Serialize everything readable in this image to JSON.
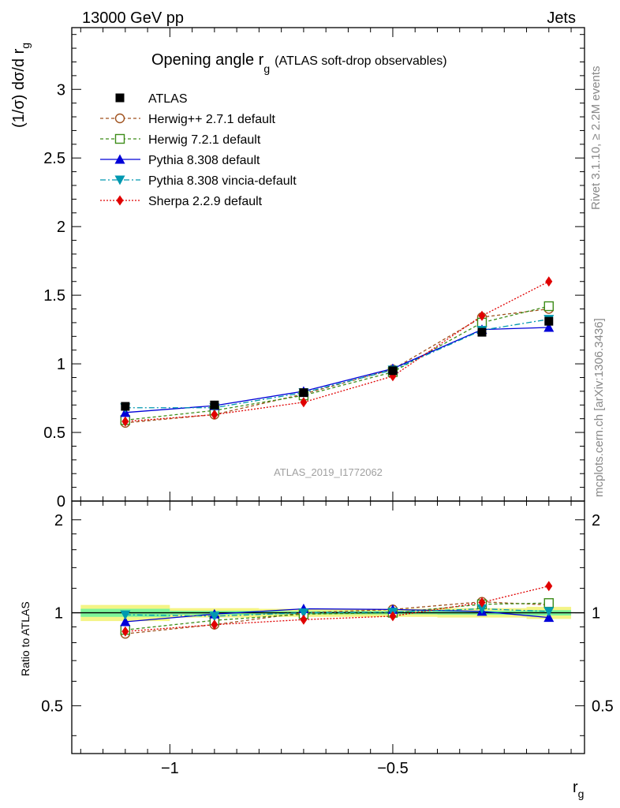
{
  "header": {
    "left": "13000 GeV pp",
    "right": "Jets"
  },
  "side_labels": {
    "rivet": "Rivet 3.1.10, ≥ 2.2M events",
    "mcplots": "mcplots.cern.ch [arXiv:1306.3436]"
  },
  "watermark": "ATLAS_2019_I1772062",
  "chart_data": {
    "type": "line",
    "title_main": "Opening angle r",
    "title_sub": "g",
    "title_tail": "(ATLAS soft-drop observables)",
    "ylabel_main": "(1/σ) dσ/d r",
    "ylabel_sub": "g",
    "xlabel_main": "r",
    "xlabel_sub": "g",
    "ratio_ylabel": "Ratio to ATLAS",
    "xlim": [
      -1.22,
      -0.07
    ],
    "ylim": [
      0,
      3.45
    ],
    "ratio_ylim": [
      0.35,
      2.3
    ],
    "x_ticks": [
      {
        "v": -1,
        "label": "−1"
      },
      {
        "v": -0.5,
        "label": "−0.5"
      }
    ],
    "y_ticks": [
      {
        "v": 0,
        "label": "0"
      },
      {
        "v": 0.5,
        "label": "0.5"
      },
      {
        "v": 1,
        "label": "1"
      },
      {
        "v": 1.5,
        "label": "1.5"
      },
      {
        "v": 2,
        "label": "2"
      },
      {
        "v": 2.5,
        "label": "2.5"
      },
      {
        "v": 3,
        "label": "3"
      }
    ],
    "ratio_ticks": [
      {
        "v": 0.5,
        "label": "0.5"
      },
      {
        "v": 1,
        "label": "1"
      },
      {
        "v": 2,
        "label": "2"
      }
    ],
    "x": [
      -1.1,
      -0.9,
      -0.7,
      -0.5,
      -0.3,
      -0.15
    ],
    "band": {
      "x_edges": [
        -1.2,
        -1.0,
        -0.8,
        -0.6,
        -0.4,
        -0.2,
        -0.1
      ],
      "inner": [
        0.03,
        0.015,
        0.012,
        0.012,
        0.015,
        0.02
      ],
      "outer": [
        0.06,
        0.035,
        0.03,
        0.03,
        0.035,
        0.045
      ],
      "inner_color": "#7cf49a",
      "outer_color": "#f4f486"
    },
    "series": [
      {
        "name": "ATLAS",
        "values": [
          0.69,
          0.7,
          0.79,
          0.95,
          1.23,
          1.31
        ],
        "color": "#000000",
        "marker": "square-filled",
        "dash": "none"
      },
      {
        "name": "Herwig++ 2.7.1 default",
        "values": [
          0.57,
          0.63,
          0.78,
          0.96,
          1.34,
          1.4
        ],
        "color": "#a0521e",
        "marker": "circle-open",
        "dash": "4,3"
      },
      {
        "name": "Herwig 7.2.1 default",
        "values": [
          0.59,
          0.66,
          0.77,
          0.94,
          1.3,
          1.42
        ],
        "color": "#3c8c18",
        "marker": "square-open",
        "dash": "4,3"
      },
      {
        "name": "Pythia 8.308 default",
        "values": [
          0.645,
          0.695,
          0.8,
          0.965,
          1.25,
          1.265
        ],
        "color": "#0000d8",
        "marker": "triangle-up",
        "dash": "none"
      },
      {
        "name": "Pythia 8.308 vincia-default",
        "values": [
          0.68,
          0.68,
          0.79,
          0.955,
          1.245,
          1.325
        ],
        "color": "#0098b0",
        "marker": "triangle-down",
        "dash": "7,3,2,3"
      },
      {
        "name": "Sherpa 2.2.9 default",
        "values": [
          0.58,
          0.63,
          0.72,
          0.91,
          1.35,
          1.6
        ],
        "color": "#e00000",
        "marker": "diamond",
        "dash": "2,2"
      }
    ],
    "ratio_series": [
      {
        "name": "Herwig++ 2.7.1 default",
        "values": [
          0.855,
          0.915,
          1.0,
          1.025,
          1.085,
          1.06
        ]
      },
      {
        "name": "Herwig 7.2.1 default",
        "values": [
          0.88,
          0.945,
          0.99,
          1.0,
          1.065,
          1.075
        ]
      },
      {
        "name": "Pythia 8.308 default",
        "values": [
          0.935,
          0.99,
          1.03,
          1.025,
          1.01,
          0.965
        ]
      },
      {
        "name": "Pythia 8.308 vincia-default",
        "values": [
          0.985,
          0.975,
          1.0,
          1.005,
          1.03,
          1.01
        ]
      },
      {
        "name": "Sherpa 2.2.9 default",
        "values": [
          0.87,
          0.915,
          0.95,
          0.975,
          1.08,
          1.22
        ]
      }
    ]
  }
}
